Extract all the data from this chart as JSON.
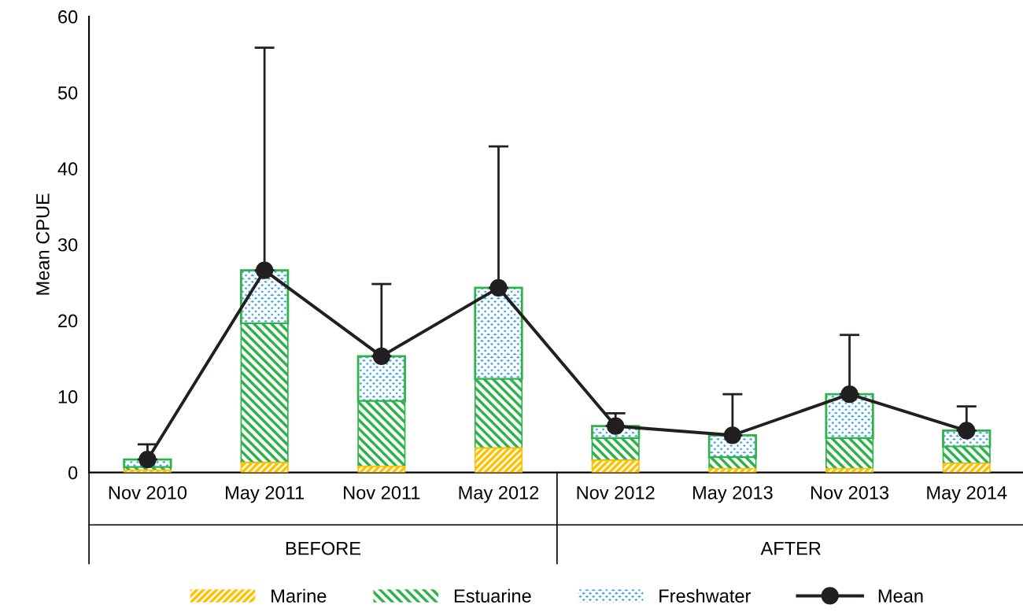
{
  "chart_data": {
    "type": "bar",
    "stacked": true,
    "ylabel": "Mean CPUE",
    "categories": [
      "Nov 2010",
      "May 2011",
      "Nov 2011",
      "May 2012",
      "Nov 2012",
      "May 2013",
      "Nov 2013",
      "May 2014"
    ],
    "annotations": [
      "BEFORE",
      "AFTER"
    ],
    "series": [
      {
        "name": "Marine",
        "color": "#ffc000",
        "values": [
          0.3,
          1.3,
          0.8,
          3.2,
          1.6,
          0.5,
          0.5,
          1.2
        ]
      },
      {
        "name": "Estuarine",
        "color": "#2db34a",
        "values": [
          0.4,
          18.3,
          8.6,
          9.1,
          2.9,
          1.5,
          4.0,
          2.2
        ]
      },
      {
        "name": "Freshwater",
        "color": "#3fa9e6",
        "values": [
          1.0,
          7.0,
          5.9,
          12.0,
          1.6,
          2.9,
          5.8,
          2.1
        ]
      },
      {
        "name": "Mean",
        "type": "line",
        "color": "#231f20",
        "marker": "circle",
        "line_style": "solid",
        "values": [
          1.7,
          26.6,
          15.3,
          24.3,
          6.1,
          4.9,
          10.3,
          5.5
        ],
        "errors": [
          [
            1.7,
            3.7
          ],
          [
            26.6,
            55.9
          ],
          [
            15.3,
            24.8
          ],
          [
            24.3,
            42.9
          ],
          [
            6.1,
            7.8
          ],
          [
            4.9,
            10.3
          ],
          [
            10.3,
            18.1
          ],
          [
            5.5,
            8.7
          ]
        ]
      }
    ],
    "ylim": [
      0,
      60
    ],
    "yticks": [
      0,
      10,
      20,
      30,
      40,
      50,
      60
    ],
    "grid": false,
    "legend": "bottom"
  }
}
